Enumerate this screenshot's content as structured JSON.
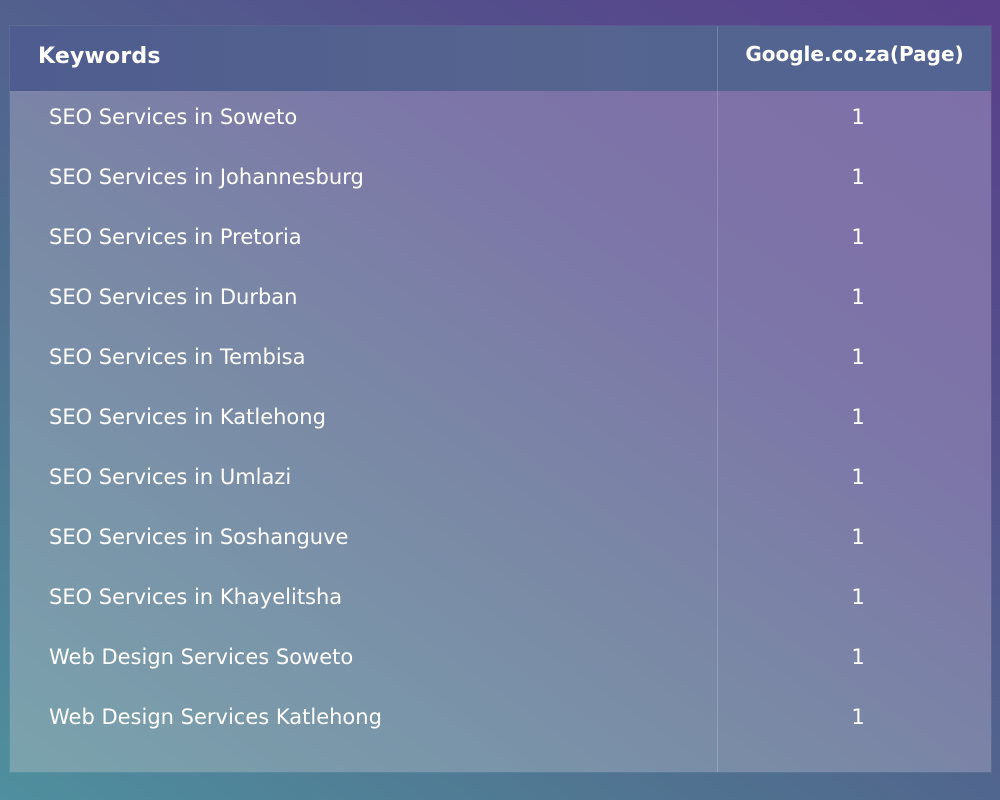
{
  "table": {
    "headers": {
      "keywords": "Keywords",
      "page": "Google.co.za(Page)"
    },
    "rows": [
      {
        "keyword": "SEO Services in Soweto",
        "page": "1"
      },
      {
        "keyword": "SEO Services in Johannesburg",
        "page": "1"
      },
      {
        "keyword": "SEO Services in Pretoria",
        "page": "1"
      },
      {
        "keyword": "SEO Services in Durban",
        "page": "1"
      },
      {
        "keyword": "SEO Services in Tembisa",
        "page": "1"
      },
      {
        "keyword": "SEO Services in Katlehong",
        "page": "1"
      },
      {
        "keyword": "SEO Services in Umlazi",
        "page": "1"
      },
      {
        "keyword": "SEO Services in Soshanguve",
        "page": "1"
      },
      {
        "keyword": "SEO Services in Khayelitsha",
        "page": "1"
      },
      {
        "keyword": "Web Design Services Soweto",
        "page": "1"
      },
      {
        "keyword": "Web Design Services Katlehong",
        "page": "1"
      }
    ]
  }
}
